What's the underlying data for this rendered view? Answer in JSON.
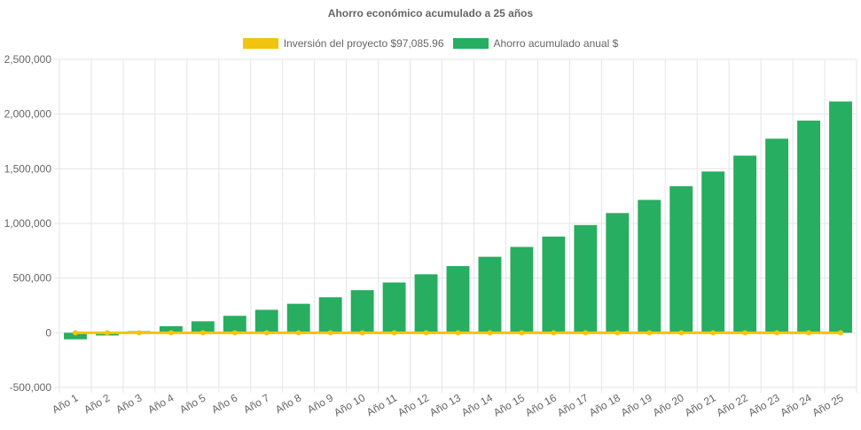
{
  "chart_data": {
    "type": "bar",
    "title": "Ahorro económico acumulado a 25 años",
    "xlabel": "",
    "ylabel": "",
    "categories": [
      "Año 1",
      "Año 2",
      "Año 3",
      "Año 4",
      "Año 5",
      "Año 6",
      "Año 7",
      "Año 8",
      "Año 9",
      "Año 10",
      "Año 11",
      "Año 12",
      "Año 13",
      "Año 14",
      "Año 15",
      "Año 16",
      "Año 17",
      "Año 18",
      "Año 19",
      "Año 20",
      "Año 21",
      "Año 22",
      "Año 23",
      "Año 24",
      "Año 25"
    ],
    "ylim": [
      -500000,
      2500000
    ],
    "yticks": [
      "2,500,000",
      "2,000,000",
      "1,500,000",
      "1,000,000",
      "500,000",
      "0",
      "-500,000"
    ],
    "ytick_values": [
      2500000,
      2000000,
      1500000,
      1000000,
      500000,
      0,
      -500000
    ],
    "grid": true,
    "legend_position": "top",
    "series": [
      {
        "name": "Inversión del proyecto $97,085.96",
        "type": "line",
        "color": "#f1c40f",
        "values": [
          0,
          0,
          0,
          0,
          0,
          0,
          0,
          0,
          0,
          0,
          0,
          0,
          0,
          0,
          0,
          0,
          0,
          0,
          0,
          0,
          0,
          0,
          0,
          0,
          0
        ]
      },
      {
        "name": "Ahorro acumulado anual $",
        "type": "bar",
        "color": "#27ae60",
        "values": [
          -60000,
          -25000,
          15000,
          60000,
          105000,
          155000,
          210000,
          265000,
          325000,
          390000,
          460000,
          535000,
          610000,
          695000,
          785000,
          880000,
          985000,
          1095000,
          1215000,
          1340000,
          1475000,
          1620000,
          1775000,
          1940000,
          2115000
        ]
      }
    ]
  }
}
